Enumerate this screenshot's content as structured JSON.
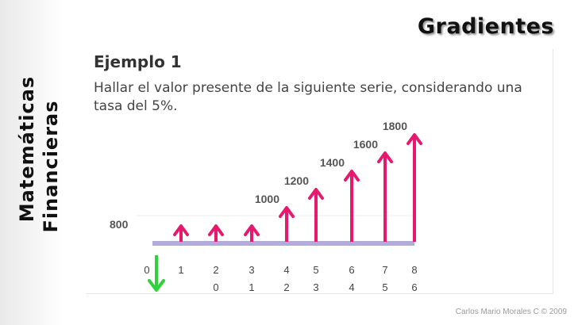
{
  "sidebar": {
    "line1": "Matemáticas",
    "line2": "Financieras"
  },
  "header": {
    "title": "Gradientes"
  },
  "example": {
    "title": "Ejemplo 1",
    "text": "Hallar el valor presente de la siguiente serie, considerando una tasa del 5%."
  },
  "footer": {
    "credit": "Carlos Mario Morales C © 2009"
  },
  "colors": {
    "arrow": "#e6196e",
    "timeline": "#b3acd9",
    "present_value": "#2fd23a"
  },
  "chart_data": {
    "type": "cash-flow-diagram",
    "periods": [
      "0",
      "1",
      "2",
      "3",
      "4",
      "5",
      "6",
      "7",
      "8"
    ],
    "second_row": [
      "0",
      "1",
      "2",
      "3",
      "4",
      "5",
      "6"
    ],
    "flows": [
      {
        "period": 1,
        "value": 800,
        "label": ""
      },
      {
        "period": 2,
        "value": 800,
        "label": ""
      },
      {
        "period": 3,
        "value": 800,
        "label": ""
      },
      {
        "period": 4,
        "value": 1000,
        "label": "1000"
      },
      {
        "period": 5,
        "value": 1200,
        "label": "1200"
      },
      {
        "period": 6,
        "value": 1400,
        "label": "1400"
      },
      {
        "period": 7,
        "value": 1600,
        "label": "1600"
      },
      {
        "period": 8,
        "value": 1800,
        "label": "1800"
      }
    ],
    "base_label": "800",
    "present_value_at": 0
  }
}
